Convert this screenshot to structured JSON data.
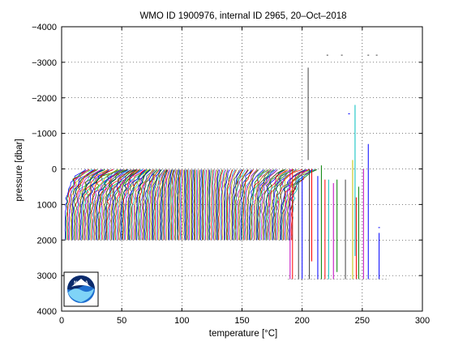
{
  "chart_data": {
    "type": "line",
    "title": "WMO ID 1900976, internal ID 2965, 20–Oct–2018",
    "xlabel": "temperature [°C]",
    "ylabel": "pressure [dbar]",
    "xlim": [
      0,
      300
    ],
    "ylim": [
      -4000,
      4000
    ],
    "y_reversed": true,
    "grid": true,
    "grid_style": "dotted",
    "x_ticks": [
      "0",
      "50",
      "100",
      "150",
      "200",
      "250",
      "300"
    ],
    "y_ticks": [
      "−4000",
      "−3000",
      "−2000",
      "−1000",
      "0",
      "1000",
      "2000",
      "3000",
      "4000"
    ],
    "y_tick_values": [
      -4000,
      -3000,
      -2000,
      -1000,
      0,
      1000,
      2000,
      3000,
      4000
    ],
    "x_tick_values": [
      0,
      50,
      100,
      150,
      200,
      250,
      300
    ],
    "series_colors": [
      "#0000ff",
      "#008000",
      "#ff0000",
      "#00bfbf",
      "#bf00bf",
      "#bfbf00",
      "#404040"
    ],
    "profiles": {
      "count": 200,
      "offset_step": 0.95,
      "surface_pressure": 20,
      "bottom_pressure": 2000,
      "surface_temperature_min": 3,
      "surface_temperature_max": 25,
      "deep_temperature": 2.5,
      "description_of_shape": "offset temperature profiles"
    },
    "late_profiles": [
      {
        "x": 190,
        "p_top": 0,
        "p_bottom": 3100,
        "color": "#bf00bf"
      },
      {
        "x": 192,
        "p_top": 0,
        "p_bottom": 3100,
        "color": "#ff0000"
      },
      {
        "x": 197,
        "p_top": 300,
        "p_bottom": 3100,
        "color": "#404040"
      },
      {
        "x": 200,
        "p_top": 200,
        "p_bottom": 3100,
        "color": "#0000ff"
      },
      {
        "x": 205,
        "p_top": -2850,
        "p_bottom": -250,
        "color": "#404040"
      },
      {
        "x": 206,
        "p_top": 0,
        "p_bottom": 3100,
        "color": "#404040"
      },
      {
        "x": 208,
        "p_top": 0,
        "p_bottom": 2600,
        "color": "#ff0000"
      },
      {
        "x": 213,
        "p_top": 200,
        "p_bottom": 3100,
        "color": "#0000ff"
      },
      {
        "x": 216,
        "p_top": -100,
        "p_bottom": 3100,
        "color": "#008000"
      },
      {
        "x": 219,
        "p_top": 300,
        "p_bottom": 3100,
        "color": "#ff0000"
      },
      {
        "x": 222,
        "p_top": 300,
        "p_bottom": 3100,
        "color": "#00bfbf"
      },
      {
        "x": 226,
        "p_top": 400,
        "p_bottom": 3100,
        "color": "#bf00bf"
      },
      {
        "x": 229,
        "p_top": 300,
        "p_bottom": 2900,
        "color": "#008000"
      },
      {
        "x": 236,
        "p_top": 300,
        "p_bottom": 3100,
        "color": "#404040"
      },
      {
        "x": 242,
        "p_top": -250,
        "p_bottom": 3100,
        "color": "#bfbf00"
      },
      {
        "x": 244,
        "p_top": -1800,
        "p_bottom": 2450,
        "color": "#00bfbf"
      },
      {
        "x": 245,
        "p_top": 800,
        "p_bottom": 3100,
        "color": "#ff0000"
      },
      {
        "x": 247,
        "p_top": 500,
        "p_bottom": 3100,
        "color": "#008000"
      },
      {
        "x": 251,
        "p_top": 0,
        "p_bottom": 3100,
        "color": "#bf00bf"
      },
      {
        "x": 255,
        "p_top": -700,
        "p_bottom": 3100,
        "color": "#0000ff"
      },
      {
        "x": 264,
        "p_top": 1800,
        "p_bottom": 3100,
        "color": "#0000ff"
      }
    ],
    "scattered_marks": [
      {
        "x": 221,
        "p": -3200,
        "color": "#404040"
      },
      {
        "x": 233,
        "p": -3200,
        "color": "#404040"
      },
      {
        "x": 255,
        "p": -3200,
        "color": "#404040"
      },
      {
        "x": 262,
        "p": -3200,
        "color": "#404040"
      },
      {
        "x": 239,
        "p": -1550,
        "color": "#0000ff"
      },
      {
        "x": 264,
        "p": 1650,
        "color": "#0000ff"
      }
    ],
    "logo": {
      "name": "noaa-logo",
      "text": "NOAA"
    }
  }
}
